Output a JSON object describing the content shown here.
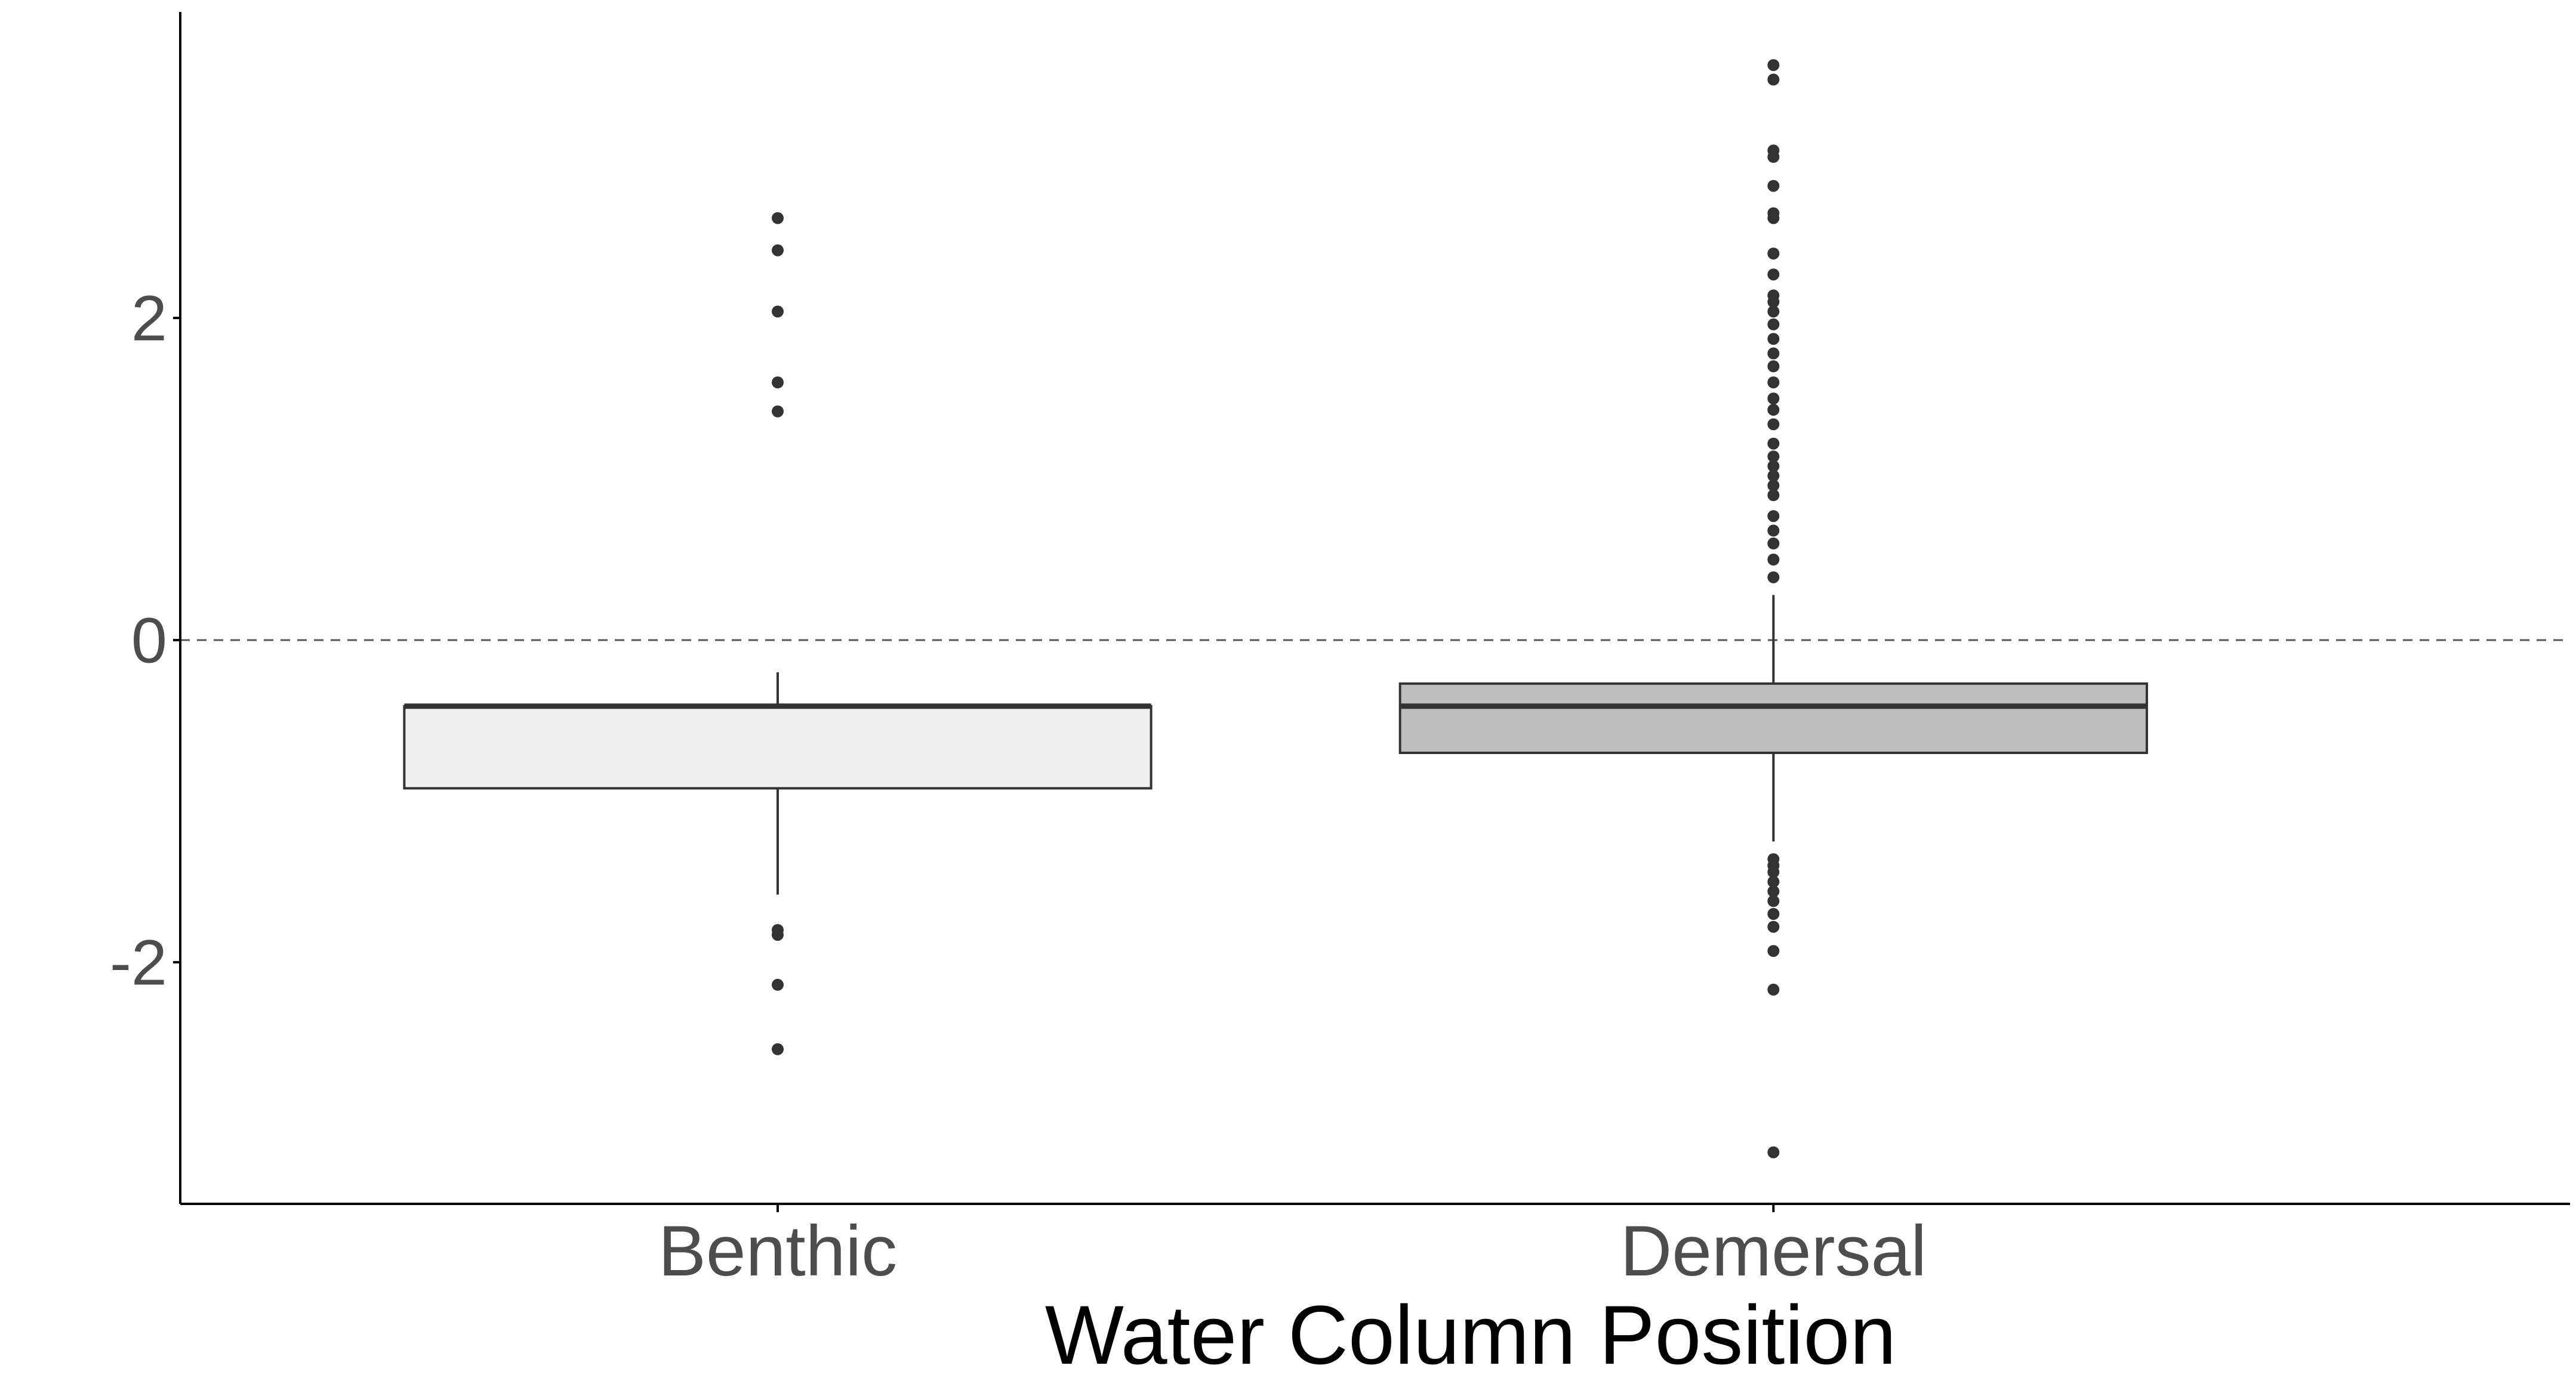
{
  "chart_data": {
    "type": "boxplot",
    "title": "",
    "xlabel": "Water Column Position",
    "ylabel": "",
    "ylim": [
      -3.5,
      3.9
    ],
    "yticks": [
      -2,
      0,
      2
    ],
    "ytick_labels": [
      "-2",
      "0",
      "2"
    ],
    "reference_line": {
      "y": 0,
      "style": "dashed"
    },
    "grid": false,
    "legend": "none",
    "categories": [
      "Benthic",
      "Demersal"
    ],
    "boxes": [
      {
        "category": "Benthic",
        "fill": "#f0f0f0",
        "whisker_low": -1.58,
        "q1": -0.92,
        "median": -0.41,
        "q3": -0.41,
        "whisker_high": -0.2,
        "outliers": [
          2.62,
          2.42,
          2.04,
          1.6,
          1.42,
          -1.8,
          -1.83,
          -2.14,
          -2.54
        ]
      },
      {
        "category": "Demersal",
        "fill": "#bdbdbd",
        "whisker_low": -1.25,
        "q1": -0.7,
        "median": -0.41,
        "q3": -0.27,
        "whisker_high": 0.28,
        "outliers": [
          3.57,
          3.48,
          3.04,
          3.0,
          2.82,
          2.65,
          2.62,
          2.4,
          2.27,
          2.14,
          2.1,
          2.04,
          1.96,
          1.87,
          1.78,
          1.7,
          1.6,
          1.5,
          1.43,
          1.34,
          1.22,
          1.14,
          1.08,
          1.02,
          0.96,
          0.9,
          0.77,
          0.68,
          0.6,
          0.5,
          0.39,
          -1.36,
          -1.4,
          -1.44,
          -1.5,
          -1.56,
          -1.62,
          -1.7,
          -1.78,
          -1.93,
          -2.17,
          -3.18
        ]
      }
    ]
  },
  "colors": {
    "axis": "#000000",
    "tick_text": "#4d4d4d",
    "title_text": "#000000",
    "box_stroke": "#333333",
    "point": "#333333",
    "ref_line": "#555555"
  }
}
